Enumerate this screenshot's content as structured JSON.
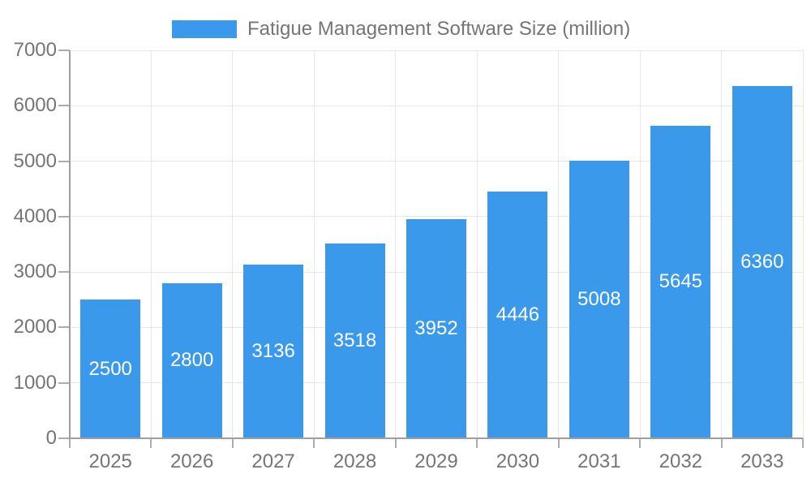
{
  "legend": {
    "label": "Fatigue Management Software Size (million)"
  },
  "chart_data": {
    "type": "bar",
    "title": "Fatigue Management Software Size (million)",
    "categories": [
      "2025",
      "2026",
      "2027",
      "2028",
      "2029",
      "2030",
      "2031",
      "2032",
      "2033"
    ],
    "series": [
      {
        "name": "Fatigue Management Software Size (million)",
        "values": [
          2500,
          2800,
          3136,
          3518,
          3952,
          4446,
          5008,
          5645,
          6360
        ]
      }
    ],
    "xlabel": "",
    "ylabel": "",
    "ylim": [
      0,
      7000
    ],
    "yticks": [
      0,
      1000,
      2000,
      3000,
      4000,
      5000,
      6000,
      7000
    ],
    "grid": true,
    "legend_position": "top",
    "value_labels_shown_inside_bars": true
  },
  "colors": {
    "bar": "#3B99EC",
    "gridline": "#E6E6E6",
    "axis_line": "#9E9E9E",
    "tick": "#ADADAD",
    "axis_text": "#757575",
    "value_label_text": "#FFFFFF",
    "background": "#FFFFFF"
  }
}
